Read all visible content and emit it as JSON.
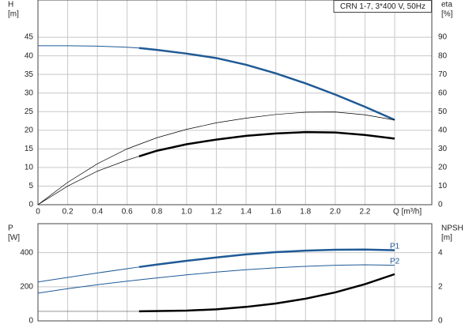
{
  "chart_data": [
    {
      "type": "line",
      "caption": "CRN 1-7, 3*400 V, 50Hz",
      "ylabel": "H",
      "yunit": "[m]",
      "y2label": "eta",
      "y2unit": "[%]",
      "xlim": [
        0,
        2.65
      ],
      "xticks": [
        0,
        0.2,
        0.4,
        0.6,
        0.8,
        {
          "value": 1.0,
          "label": "1.0"
        },
        1.2,
        1.4,
        1.6,
        1.8,
        {
          "value": 2.0,
          "label": "2.0"
        },
        2.2,
        {
          "value": 2.4,
          "label": "Q [m³/h]"
        }
      ],
      "ylim": [
        0,
        55
      ],
      "yticks": [
        0,
        5,
        10,
        15,
        20,
        25,
        30,
        35,
        40,
        45
      ],
      "y2lim": [
        0,
        110
      ],
      "y2ticks": [
        0,
        10,
        20,
        30,
        40,
        50,
        60,
        70,
        80,
        90
      ],
      "grid": true,
      "series": [
        {
          "color": "#1f5a96",
          "line_width": 1,
          "x": [
            0,
            0.2,
            0.4,
            0.6,
            0.68
          ],
          "values": [
            42.7,
            42.7,
            42.6,
            42.3,
            42.1
          ]
        },
        {
          "color": "#1f5a96",
          "line_width": 2.5,
          "x": [
            0.68,
            0.8,
            1.0,
            1.2,
            1.4,
            1.6,
            1.8,
            2.0,
            2.2,
            2.4
          ],
          "values": [
            42.1,
            41.6,
            40.6,
            39.4,
            37.6,
            35.3,
            32.6,
            29.6,
            26.3,
            22.8
          ]
        },
        {
          "color": "#000000",
          "line_width": 0.7,
          "axis": "y2",
          "x": [
            0,
            0.2,
            0.4,
            0.6,
            0.8,
            1.0,
            1.2,
            1.4,
            1.6,
            1.8,
            2.0,
            2.2,
            2.4
          ],
          "values": [
            0,
            12,
            22,
            30,
            36,
            40.5,
            44,
            46.5,
            48.5,
            49.7,
            49.8,
            48.3,
            45.5
          ]
        },
        {
          "color": "#000000",
          "line_width": 0.7,
          "axis": "y2",
          "x": [
            0,
            0.2,
            0.4,
            0.6,
            0.68
          ],
          "values": [
            0,
            10,
            18,
            24,
            26
          ]
        },
        {
          "color": "#000000",
          "line_width": 2.5,
          "axis": "y2",
          "x": [
            0.68,
            0.8,
            1.0,
            1.2,
            1.4,
            1.6,
            1.8,
            2.0,
            2.2,
            2.4
          ],
          "values": [
            26,
            29,
            32.5,
            35,
            37,
            38.3,
            39,
            38.8,
            37.5,
            35.5
          ]
        }
      ]
    },
    {
      "type": "line",
      "ylabel": "P",
      "yunit": "[W]",
      "y2label": "NPSH",
      "y2unit": "[m]",
      "xlim": [
        0,
        2.65
      ],
      "ylim": [
        0,
        570
      ],
      "yticks": [
        0,
        200,
        400
      ],
      "y2lim": [
        0,
        5.7
      ],
      "y2ticks": [
        0,
        2,
        4
      ],
      "grid": true,
      "series": [
        {
          "color": "#1f5a96",
          "line_width": 1,
          "x": [
            0,
            0.2,
            0.4,
            0.6,
            0.68
          ],
          "values": [
            228,
            255,
            281,
            306,
            316
          ]
        },
        {
          "name": "P1",
          "color": "#1f5a96",
          "line_width": 2.5,
          "x": [
            0.68,
            0.8,
            1.0,
            1.2,
            1.4,
            1.6,
            1.8,
            2.0,
            2.2,
            2.4
          ],
          "values": [
            316,
            330,
            352,
            372,
            390,
            403,
            412,
            417,
            418,
            414
          ]
        },
        {
          "name": "P2",
          "color": "#1f5a96",
          "line_width": 1,
          "x": [
            0,
            0.2,
            0.4,
            0.6,
            0.8,
            1.0,
            1.2,
            1.4,
            1.6,
            1.8,
            2.0,
            2.2,
            2.4
          ],
          "values": [
            163,
            189,
            212,
            233,
            252,
            270,
            286,
            300,
            311,
            320,
            326,
            329,
            326
          ]
        },
        {
          "color": "#555555",
          "line_width": 0.7,
          "axis": "y2",
          "x": [
            0,
            0.68
          ],
          "values": [
            0.56,
            0.56
          ]
        },
        {
          "color": "#000000",
          "line_width": 2.5,
          "axis": "y2",
          "x": [
            0.68,
            1.0,
            1.2,
            1.4,
            1.6,
            1.8,
            2.0,
            2.2,
            2.4
          ],
          "values": [
            0.56,
            0.6,
            0.68,
            0.82,
            1.02,
            1.3,
            1.67,
            2.15,
            2.74
          ]
        }
      ]
    }
  ]
}
